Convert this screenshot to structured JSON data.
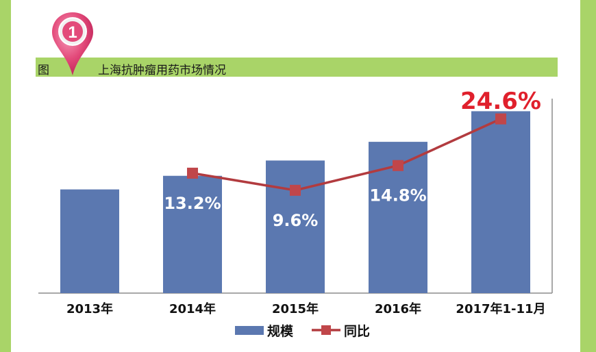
{
  "header": {
    "badge_number": "1",
    "prefix": "图",
    "title": "上海抗肿瘤用药市场情况"
  },
  "colors": {
    "frame": "#a9d468",
    "bar": "#5b78b0",
    "line": "#b23b3f",
    "marker": "#c0464a",
    "highlight_label": "#e0202c",
    "pin": "#e34a7a"
  },
  "chart_data": {
    "type": "bar",
    "categories": [
      "2013年",
      "2014年",
      "2015年",
      "2016年",
      "2017年1-11月"
    ],
    "series": [
      {
        "name": "规模",
        "type": "bar",
        "values": [
          30.5,
          34.5,
          39.0,
          44.5,
          53.5
        ]
      },
      {
        "name": "同比",
        "type": "line",
        "values": [
          null,
          13.2,
          9.6,
          14.8,
          24.6
        ],
        "labels": [
          null,
          "13.2%",
          "9.6%",
          "14.8%",
          "24.6%"
        ]
      }
    ],
    "ylim": [
      0,
      56
    ],
    "y2lim": [
      -12,
      28
    ],
    "grid": false,
    "legend": "bottom-center"
  }
}
